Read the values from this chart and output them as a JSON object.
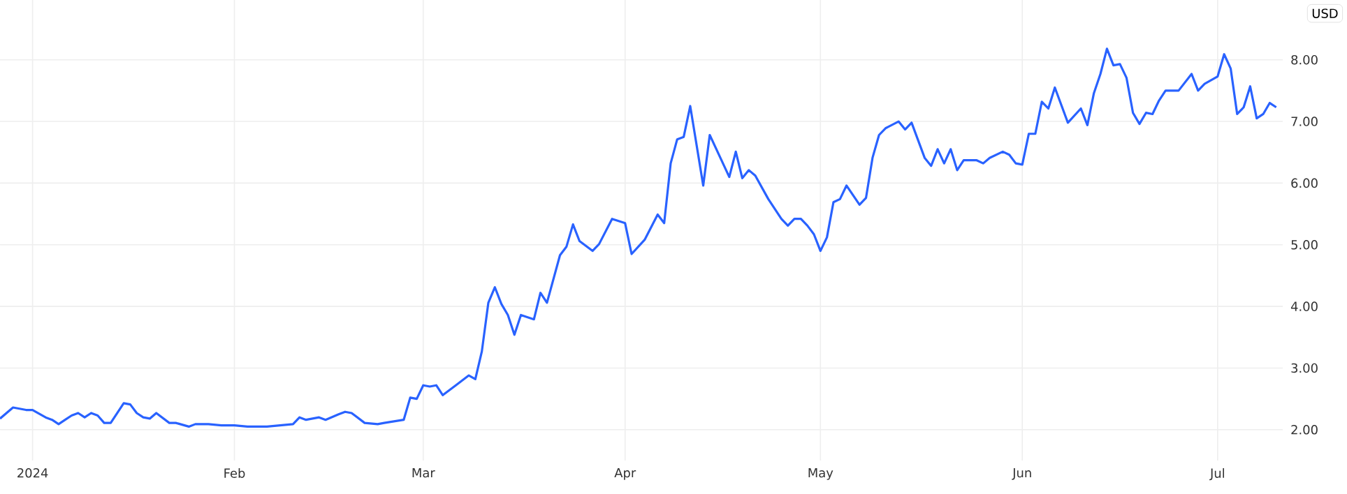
{
  "chart_data": {
    "type": "line",
    "ylabel": "USD",
    "color": "#2962ff",
    "grid": true,
    "marker": "none",
    "line_style": "solid",
    "xlim": [
      "2023-12-27",
      "2024-07-11"
    ],
    "ylim": [
      1.5,
      8.97
    ],
    "xticks": [
      {
        "value": "2024-01-01",
        "label": "2024"
      },
      {
        "value": "2024-02-01",
        "label": "Feb"
      },
      {
        "value": "2024-03-01",
        "label": "Mar"
      },
      {
        "value": "2024-04-01",
        "label": "Apr"
      },
      {
        "value": "2024-05-01",
        "label": "May"
      },
      {
        "value": "2024-06-01",
        "label": "Jun"
      },
      {
        "value": "2024-07-01",
        "label": "Jul"
      }
    ],
    "yticks": [
      {
        "value": 2,
        "label": "2.00"
      },
      {
        "value": 3,
        "label": "3.00"
      },
      {
        "value": 4,
        "label": "4.00"
      },
      {
        "value": 5,
        "label": "5.00"
      },
      {
        "value": 6,
        "label": "6.00"
      },
      {
        "value": 7,
        "label": "7.00"
      },
      {
        "value": 8,
        "label": "8.00"
      }
    ],
    "x": [
      "2023-12-27",
      "2023-12-29",
      "2023-12-31",
      "2024-01-01",
      "2024-01-03",
      "2024-01-04",
      "2024-01-05",
      "2024-01-06",
      "2024-01-07",
      "2024-01-08",
      "2024-01-09",
      "2024-01-10",
      "2024-01-11",
      "2024-01-12",
      "2024-01-13",
      "2024-01-15",
      "2024-01-16",
      "2024-01-17",
      "2024-01-18",
      "2024-01-19",
      "2024-01-20",
      "2024-01-22",
      "2024-01-23",
      "2024-01-25",
      "2024-01-26",
      "2024-01-28",
      "2024-01-30",
      "2024-02-01",
      "2024-02-03",
      "2024-02-06",
      "2024-02-08",
      "2024-02-10",
      "2024-02-11",
      "2024-02-12",
      "2024-02-14",
      "2024-02-15",
      "2024-02-17",
      "2024-02-18",
      "2024-02-19",
      "2024-02-21",
      "2024-02-23",
      "2024-02-24",
      "2024-02-27",
      "2024-02-28",
      "2024-02-29",
      "2024-03-01",
      "2024-03-02",
      "2024-03-03",
      "2024-03-04",
      "2024-03-06",
      "2024-03-08",
      "2024-03-09",
      "2024-03-10",
      "2024-03-11",
      "2024-03-12",
      "2024-03-13",
      "2024-03-14",
      "2024-03-15",
      "2024-03-16",
      "2024-03-18",
      "2024-03-19",
      "2024-03-20",
      "2024-03-22",
      "2024-03-23",
      "2024-03-24",
      "2024-03-25",
      "2024-03-27",
      "2024-03-28",
      "2024-03-30",
      "2024-04-01",
      "2024-04-02",
      "2024-04-04",
      "2024-04-06",
      "2024-04-07",
      "2024-04-08",
      "2024-04-09",
      "2024-04-10",
      "2024-04-11",
      "2024-04-13",
      "2024-04-14",
      "2024-04-17",
      "2024-04-18",
      "2024-04-19",
      "2024-04-20",
      "2024-04-21",
      "2024-04-23",
      "2024-04-25",
      "2024-04-26",
      "2024-04-27",
      "2024-04-28",
      "2024-04-29",
      "2024-04-30",
      "2024-05-01",
      "2024-05-02",
      "2024-05-03",
      "2024-05-04",
      "2024-05-05",
      "2024-05-07",
      "2024-05-08",
      "2024-05-09",
      "2024-05-10",
      "2024-05-11",
      "2024-05-13",
      "2024-05-14",
      "2024-05-15",
      "2024-05-17",
      "2024-05-18",
      "2024-05-19",
      "2024-05-20",
      "2024-05-21",
      "2024-05-22",
      "2024-05-23",
      "2024-05-25",
      "2024-05-26",
      "2024-05-27",
      "2024-05-29",
      "2024-05-30",
      "2024-05-31",
      "2024-06-01",
      "2024-06-02",
      "2024-06-03",
      "2024-06-04",
      "2024-06-05",
      "2024-06-06",
      "2024-06-08",
      "2024-06-10",
      "2024-06-11",
      "2024-06-12",
      "2024-06-13",
      "2024-06-14",
      "2024-06-15",
      "2024-06-16",
      "2024-06-17",
      "2024-06-18",
      "2024-06-19",
      "2024-06-20",
      "2024-06-21",
      "2024-06-22",
      "2024-06-23",
      "2024-06-25",
      "2024-06-27",
      "2024-06-28",
      "2024-06-29",
      "2024-07-01",
      "2024-07-02",
      "2024-07-03",
      "2024-07-04",
      "2024-07-05",
      "2024-07-06",
      "2024-07-07",
      "2024-07-08",
      "2024-07-09",
      "2024-07-10"
    ],
    "values": [
      2.18,
      2.36,
      2.32,
      2.32,
      2.2,
      2.16,
      2.09,
      2.16,
      2.23,
      2.27,
      2.2,
      2.27,
      2.23,
      2.11,
      2.11,
      2.43,
      2.41,
      2.27,
      2.2,
      2.18,
      2.27,
      2.11,
      2.11,
      2.05,
      2.09,
      2.09,
      2.07,
      2.07,
      2.05,
      2.05,
      2.07,
      2.09,
      2.2,
      2.16,
      2.2,
      2.16,
      2.25,
      2.29,
      2.27,
      2.11,
      2.09,
      2.11,
      2.16,
      2.52,
      2.5,
      2.72,
      2.7,
      2.72,
      2.56,
      2.72,
      2.88,
      2.82,
      3.27,
      4.06,
      4.31,
      4.04,
      3.86,
      3.54,
      3.86,
      3.79,
      4.22,
      4.06,
      4.83,
      4.97,
      5.33,
      5.06,
      4.9,
      5.01,
      5.42,
      5.35,
      4.85,
      5.08,
      5.49,
      5.35,
      6.32,
      6.71,
      6.75,
      7.25,
      5.96,
      6.78,
      6.1,
      6.51,
      6.08,
      6.21,
      6.12,
      5.74,
      5.42,
      5.31,
      5.42,
      5.42,
      5.31,
      5.17,
      4.9,
      5.12,
      5.69,
      5.74,
      5.96,
      5.65,
      5.76,
      6.41,
      6.78,
      6.89,
      7.0,
      6.87,
      6.98,
      6.41,
      6.28,
      6.55,
      6.32,
      6.55,
      6.21,
      6.37,
      6.37,
      6.32,
      6.41,
      6.51,
      6.46,
      6.32,
      6.3,
      6.8,
      6.8,
      7.32,
      7.21,
      7.55,
      6.98,
      7.21,
      6.94,
      7.46,
      7.77,
      8.18,
      7.91,
      7.93,
      7.71,
      7.14,
      6.96,
      7.14,
      7.12,
      7.34,
      7.5,
      7.5,
      7.77,
      7.5,
      7.61,
      7.73,
      8.09,
      7.86,
      7.12,
      7.23,
      7.57,
      7.05,
      7.12,
      7.3,
      7.23
    ]
  }
}
